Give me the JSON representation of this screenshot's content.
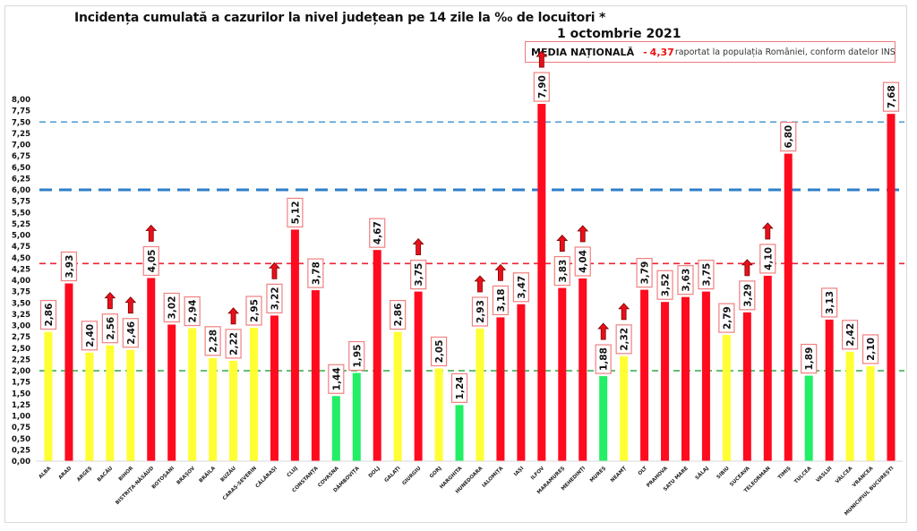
{
  "chart_data": {
    "type": "bar",
    "title": "Incidența cumulată a cazurilor la nivel județean pe 14 zile la ‰ de locuitori *",
    "subtitle": "1 octombrie 2021",
    "xlabel": "",
    "ylabel": "",
    "ylim": [
      0,
      8
    ],
    "ytick_step": 0.25,
    "decimal_separator": ",",
    "grid": false,
    "annotation": {
      "label": "MEDIA NAȚIONALĂ",
      "dash": "-",
      "value": "4,37",
      "note": "raportat la populația României, conform datelor INS"
    },
    "reference_lines": [
      {
        "name": "threshold-7.5",
        "value": 7.5,
        "color": "#4a9ad6",
        "style": "dashed-thin"
      },
      {
        "name": "threshold-6",
        "value": 6.0,
        "color": "#2f7fc8",
        "style": "dashed-thick"
      },
      {
        "name": "national-average",
        "value": 4.37,
        "color": "#ee2233",
        "style": "dashed"
      },
      {
        "name": "threshold-2",
        "value": 2.0,
        "color": "#2eaa44",
        "style": "dashed"
      }
    ],
    "colors": {
      "red": "#ff0a1e",
      "yellow": "#ffff33",
      "green": "#22ee66",
      "arrow": "#e8101a"
    },
    "categories": [
      "ALBA",
      "ARAD",
      "ARGEȘ",
      "BACĂU",
      "BIHOR",
      "BISTRIȚA-NĂSĂUD",
      "BOTOȘANI",
      "BRAȘOV",
      "BRĂILA",
      "BUZĂU",
      "CARAȘ-SEVERIN",
      "CĂLĂRAȘI",
      "CLUJ",
      "CONSTANȚA",
      "COVASNA",
      "DÂMBOVIȚA",
      "DOLJ",
      "GALAȚI",
      "GIURGIU",
      "GORJ",
      "HARGHITA",
      "HUNEDOARA",
      "IALOMIȚA",
      "IAȘI",
      "ILFOV",
      "MARAMUREȘ",
      "MEHEDINȚI",
      "MUREȘ",
      "NEAMȚ",
      "OLT",
      "PRAHOVA",
      "SATU MARE",
      "SĂLAJ",
      "SIBIU",
      "SUCEAVA",
      "TELEORMAN",
      "TIMIȘ",
      "TULCEA",
      "VASLUI",
      "VÂLCEA",
      "VRANCEA",
      "MUNICIPIUL BUCUREȘTI"
    ],
    "values": [
      2.86,
      3.93,
      2.4,
      2.56,
      2.46,
      4.05,
      3.02,
      2.94,
      2.28,
      2.22,
      2.95,
      3.22,
      5.12,
      3.78,
      1.44,
      1.95,
      4.67,
      2.86,
      3.75,
      2.05,
      1.24,
      2.93,
      3.18,
      3.47,
      7.9,
      3.83,
      4.04,
      1.88,
      2.32,
      3.79,
      3.52,
      3.63,
      3.75,
      2.79,
      3.29,
      4.1,
      6.8,
      1.89,
      3.13,
      2.42,
      2.1,
      7.68
    ],
    "value_labels": [
      "2,86",
      "3,93",
      "2,40",
      "2,56",
      "2,46",
      "4,05",
      "3,02",
      "2,94",
      "2,28",
      "2,22",
      "2,95",
      "3,22",
      "5,12",
      "3,78",
      "1,44",
      "1,95",
      "4,67",
      "2,86",
      "3,75",
      "2,05",
      "1,24",
      "2,93",
      "3,18",
      "3,47",
      "7,90",
      "3,83",
      "4,04",
      "1,88",
      "2,32",
      "3,79",
      "3,52",
      "3,63",
      "3,75",
      "2,79",
      "3,29",
      "4,10",
      "6,80",
      "1,89",
      "3,13",
      "2,42",
      "2,10",
      "7,68"
    ],
    "bar_colors": [
      "yellow",
      "red",
      "yellow",
      "yellow",
      "yellow",
      "red",
      "red",
      "yellow",
      "yellow",
      "yellow",
      "yellow",
      "red",
      "red",
      "red",
      "green",
      "green",
      "red",
      "yellow",
      "red",
      "yellow",
      "green",
      "yellow",
      "red",
      "red",
      "red",
      "red",
      "red",
      "green",
      "yellow",
      "red",
      "red",
      "red",
      "red",
      "yellow",
      "red",
      "red",
      "red",
      "green",
      "red",
      "yellow",
      "yellow",
      "red"
    ],
    "trend_up": [
      false,
      false,
      false,
      true,
      true,
      true,
      false,
      false,
      false,
      true,
      false,
      true,
      false,
      false,
      false,
      false,
      false,
      false,
      true,
      false,
      false,
      true,
      true,
      false,
      true,
      true,
      true,
      true,
      true,
      false,
      false,
      false,
      false,
      false,
      true,
      true,
      false,
      false,
      false,
      false,
      false,
      false
    ],
    "yticks": [
      "0,00",
      "0,25",
      "0,50",
      "0,75",
      "1,00",
      "1,25",
      "1,50",
      "1,75",
      "2,00",
      "2,25",
      "2,50",
      "2,75",
      "3,00",
      "3,25",
      "3,50",
      "3,75",
      "4,00",
      "4,25",
      "4,50",
      "4,75",
      "5,00",
      "5,25",
      "5,50",
      "5,75",
      "6,00",
      "6,25",
      "6,50",
      "6,75",
      "7,00",
      "7,25",
      "7,50",
      "7,75",
      "8,00"
    ]
  }
}
